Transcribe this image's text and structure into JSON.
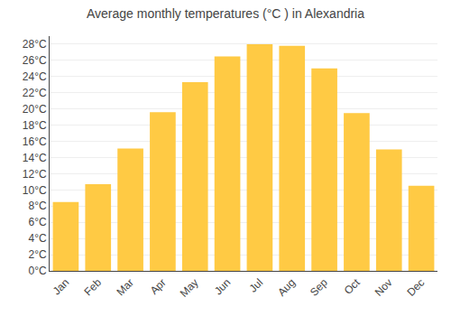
{
  "chart_data": {
    "type": "bar",
    "title": "Average monthly temperatures (°C ) in Alexandria",
    "categories": [
      "Jan",
      "Feb",
      "Mar",
      "Apr",
      "May",
      "Jun",
      "Jul",
      "Aug",
      "Sep",
      "Oct",
      "Nov",
      "Dec"
    ],
    "values": [
      8.5,
      10.7,
      15.1,
      19.6,
      23.3,
      26.5,
      28.0,
      27.8,
      25.0,
      19.5,
      15.0,
      10.5
    ],
    "color": "#FFCA44",
    "ylim": [
      0,
      29
    ],
    "yticks": [
      {
        "value": 0,
        "label": "0°C"
      },
      {
        "value": 2,
        "label": "2°C"
      },
      {
        "value": 4,
        "label": "4°C"
      },
      {
        "value": 6,
        "label": "6°C"
      },
      {
        "value": 8,
        "label": "8°C"
      },
      {
        "value": 10,
        "label": "10°C"
      },
      {
        "value": 12,
        "label": "12°C"
      },
      {
        "value": 14,
        "label": "14°C"
      },
      {
        "value": 16,
        "label": "16°C"
      },
      {
        "value": 18,
        "label": "18°C"
      },
      {
        "value": 20,
        "label": "20°C"
      },
      {
        "value": 22,
        "label": "22°C"
      },
      {
        "value": 24,
        "label": "24°C"
      },
      {
        "value": 26,
        "label": "26°C"
      },
      {
        "value": 28,
        "label": "28°C"
      }
    ],
    "grid": true
  }
}
